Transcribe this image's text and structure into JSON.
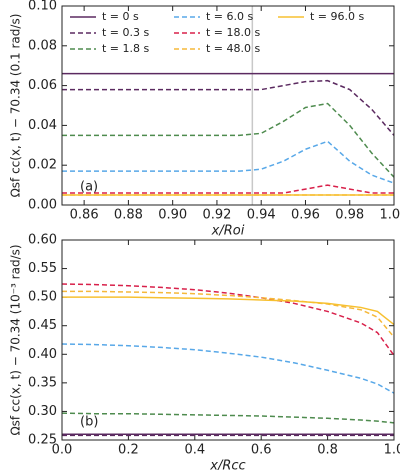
{
  "chart_data": [
    {
      "type": "line",
      "ylabel": "Ωsf cc(x, t) − 70.34  (0.1 rad/s)",
      "xlabel": "x/Roi",
      "annotation": "(a)",
      "legend": "upper center",
      "legend_columns": 3,
      "vline": 0.936,
      "vline_color": "#c8c8c8",
      "xlim": [
        0.85,
        1.0
      ],
      "xticks": [
        0.86,
        0.88,
        {
          "value": 0.9,
          "label": "0.90"
        },
        0.92,
        0.94,
        0.96,
        0.98,
        {
          "value": 1,
          "label": "1.00"
        }
      ],
      "ylim": [
        0,
        0.1
      ],
      "yticks": [
        {
          "value": 0,
          "label": "0.00"
        },
        0.02,
        0.04,
        0.06,
        0.08,
        {
          "value": 0.1,
          "label": "0.10"
        }
      ],
      "x": [
        0.85,
        0.86,
        0.87,
        0.88,
        0.89,
        0.9,
        0.91,
        0.92,
        0.93,
        0.94,
        0.95,
        0.96,
        0.97,
        0.98,
        0.99,
        1.0
      ],
      "series": [
        {
          "name": "t = 0 s",
          "color": "#5b2a60",
          "linestyle": "solid",
          "values": [
            0.066,
            0.066,
            0.066,
            0.066,
            0.066,
            0.066,
            0.066,
            0.066,
            0.066,
            0.066,
            0.066,
            0.066,
            0.066,
            0.066,
            0.066,
            0.066
          ]
        },
        {
          "name": "t = 0.3 s",
          "color": "#5b2a60",
          "linestyle": "dashed",
          "values": [
            0.058,
            0.058,
            0.058,
            0.058,
            0.058,
            0.058,
            0.058,
            0.058,
            0.058,
            0.058,
            0.06,
            0.062,
            0.0625,
            0.058,
            0.048,
            0.035
          ]
        },
        {
          "name": "t = 1.8 s",
          "color": "#4e8b4e",
          "linestyle": "dashed",
          "values": [
            0.035,
            0.035,
            0.035,
            0.035,
            0.035,
            0.035,
            0.035,
            0.035,
            0.035,
            0.036,
            0.042,
            0.049,
            0.051,
            0.04,
            0.026,
            0.014
          ]
        },
        {
          "name": "t = 6.0 s",
          "color": "#58a8e8",
          "linestyle": "dashed",
          "values": [
            0.017,
            0.017,
            0.017,
            0.017,
            0.017,
            0.017,
            0.017,
            0.017,
            0.017,
            0.018,
            0.022,
            0.028,
            0.032,
            0.022,
            0.015,
            0.011
          ]
        },
        {
          "name": "t = 18.0 s",
          "color": "#d8204a",
          "linestyle": "dashed",
          "values": [
            0.006,
            0.006,
            0.006,
            0.006,
            0.006,
            0.006,
            0.006,
            0.006,
            0.006,
            0.006,
            0.006,
            0.008,
            0.01,
            0.008,
            0.006,
            0.006
          ]
        },
        {
          "name": "t = 48.0 s",
          "color": "#f5b83a",
          "linestyle": "dashed",
          "values": [
            0.005,
            0.005,
            0.005,
            0.005,
            0.005,
            0.005,
            0.005,
            0.005,
            0.005,
            0.005,
            0.005,
            0.005,
            0.005,
            0.005,
            0.005,
            0.005
          ]
        },
        {
          "name": "t = 96.0 s",
          "color": "#f7c030",
          "linestyle": "solid",
          "values": [
            0.005,
            0.005,
            0.005,
            0.005,
            0.005,
            0.005,
            0.005,
            0.005,
            0.005,
            0.005,
            0.005,
            0.005,
            0.005,
            0.005,
            0.005,
            0.005
          ]
        }
      ]
    },
    {
      "type": "line",
      "ylabel": "Ωsf cc(x, t) − 70.34  (10⁻³ rad/s)",
      "xlabel": "x/Rcc",
      "annotation": "(b)",
      "xlim": [
        0,
        1.0
      ],
      "xticks": [
        {
          "value": 0,
          "label": "0.0"
        },
        0.2,
        0.4,
        0.6,
        0.8,
        {
          "value": 1,
          "label": "1.0"
        }
      ],
      "ylim": [
        0.25,
        0.6
      ],
      "yticks": [
        0.25,
        {
          "value": 0.3,
          "label": "0.30"
        },
        0.35,
        {
          "value": 0.4,
          "label": "0.40"
        },
        0.45,
        {
          "value": 0.5,
          "label": "0.50"
        },
        0.55,
        {
          "value": 0.6,
          "label": "0.60"
        }
      ],
      "x": [
        0,
        0.1,
        0.2,
        0.3,
        0.4,
        0.5,
        0.6,
        0.7,
        0.8,
        0.9,
        0.95,
        1.0
      ],
      "series": [
        {
          "color": "#5b2a60",
          "linestyle": "solid",
          "values": [
            0.26,
            0.26,
            0.26,
            0.26,
            0.26,
            0.26,
            0.26,
            0.26,
            0.26,
            0.26,
            0.26,
            0.26
          ]
        },
        {
          "color": "#5b2a60",
          "linestyle": "dashed",
          "values": [
            0.258,
            0.258,
            0.258,
            0.258,
            0.258,
            0.258,
            0.258,
            0.258,
            0.258,
            0.258,
            0.258,
            0.258
          ]
        },
        {
          "color": "#4e8b4e",
          "linestyle": "dashed",
          "values": [
            0.297,
            0.296,
            0.296,
            0.295,
            0.294,
            0.293,
            0.292,
            0.29,
            0.288,
            0.285,
            0.283,
            0.28
          ]
        },
        {
          "color": "#58a8e8",
          "linestyle": "dashed",
          "values": [
            0.418,
            0.417,
            0.415,
            0.412,
            0.408,
            0.402,
            0.395,
            0.385,
            0.372,
            0.358,
            0.348,
            0.332
          ]
        },
        {
          "color": "#d8204a",
          "linestyle": "dashed",
          "values": [
            0.523,
            0.522,
            0.52,
            0.517,
            0.513,
            0.507,
            0.499,
            0.489,
            0.475,
            0.455,
            0.438,
            0.398
          ]
        },
        {
          "color": "#f5b83a",
          "linestyle": "dashed",
          "values": [
            0.51,
            0.51,
            0.509,
            0.508,
            0.506,
            0.503,
            0.499,
            0.494,
            0.488,
            0.478,
            0.465,
            0.43
          ]
        },
        {
          "color": "#f7c030",
          "linestyle": "solid",
          "values": [
            0.5,
            0.5,
            0.5,
            0.499,
            0.498,
            0.497,
            0.495,
            0.493,
            0.489,
            0.482,
            0.475,
            0.452
          ]
        }
      ]
    }
  ]
}
